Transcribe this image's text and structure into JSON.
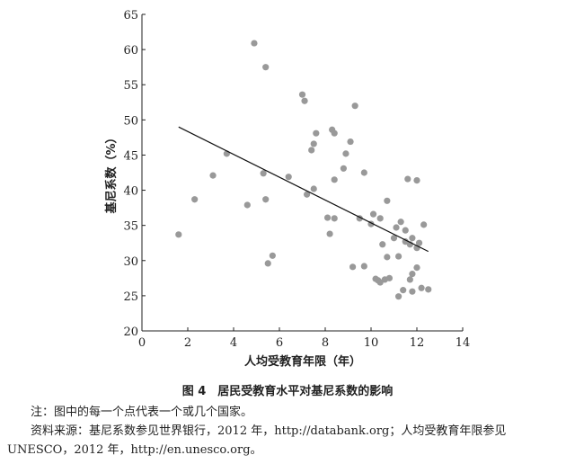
{
  "chart_data": {
    "type": "scatter",
    "x_label": "人均受教育年限（年）",
    "y_label": "基尼系数（%）",
    "xlim": [
      0,
      14
    ],
    "xticks": [
      0,
      2,
      4,
      6,
      8,
      10,
      12,
      14
    ],
    "ylim": [
      20,
      65
    ],
    "yticks": [
      20,
      25,
      30,
      35,
      40,
      45,
      50,
      55,
      60,
      65
    ],
    "color": "#999999",
    "x": [
      1.6,
      2.3,
      3.1,
      3.7,
      4.6,
      4.9,
      5.3,
      5.4,
      5.4,
      5.5,
      5.7,
      6.4,
      7.0,
      7.1,
      7.2,
      7.4,
      7.5,
      7.5,
      7.6,
      8.1,
      8.2,
      8.3,
      8.4,
      8.4,
      8.4,
      8.8,
      8.9,
      9.1,
      9.2,
      9.3,
      9.5,
      9.7,
      9.7,
      10.0,
      10.1,
      10.2,
      10.3,
      10.4,
      10.4,
      10.5,
      10.6,
      10.7,
      10.7,
      10.8,
      11.0,
      11.1,
      11.2,
      11.2,
      11.3,
      11.4,
      11.5,
      11.5,
      11.6,
      11.7,
      11.7,
      11.8,
      11.8,
      11.8,
      12.0,
      12.0,
      12.0,
      12.1,
      12.2,
      12.3,
      12.5
    ],
    "values": [
      33.7,
      38.7,
      42.1,
      45.2,
      37.9,
      60.9,
      42.4,
      57.5,
      38.7,
      29.6,
      30.7,
      41.9,
      53.6,
      52.7,
      39.4,
      45.7,
      46.6,
      40.2,
      48.1,
      36.1,
      33.8,
      48.6,
      48.1,
      41.5,
      36.0,
      43.1,
      45.2,
      46.9,
      29.1,
      52.0,
      36.0,
      42.5,
      29.2,
      35.2,
      36.6,
      27.4,
      27.2,
      26.9,
      36.0,
      32.3,
      27.3,
      38.5,
      30.5,
      27.5,
      33.2,
      34.7,
      30.6,
      24.9,
      35.5,
      25.8,
      34.3,
      32.7,
      41.6,
      27.3,
      32.3,
      28.1,
      25.6,
      33.2,
      29.0,
      41.4,
      31.8,
      32.5,
      26.1,
      35.1,
      25.9
    ],
    "trend": {
      "x": [
        1.6,
        12.5
      ],
      "values": [
        49.0,
        31.3
      ]
    },
    "caption": "图 4　居民受教育水平对基尼系数的影响",
    "notes": [
      "注：图中的每一个点代表一个或几个国家。",
      "资料来源：基尼系数参见世界银行，2012 年，http://databank.org；人均受教育年限参见 UNESCO，2012 年，http://en.unesco.org。"
    ]
  }
}
